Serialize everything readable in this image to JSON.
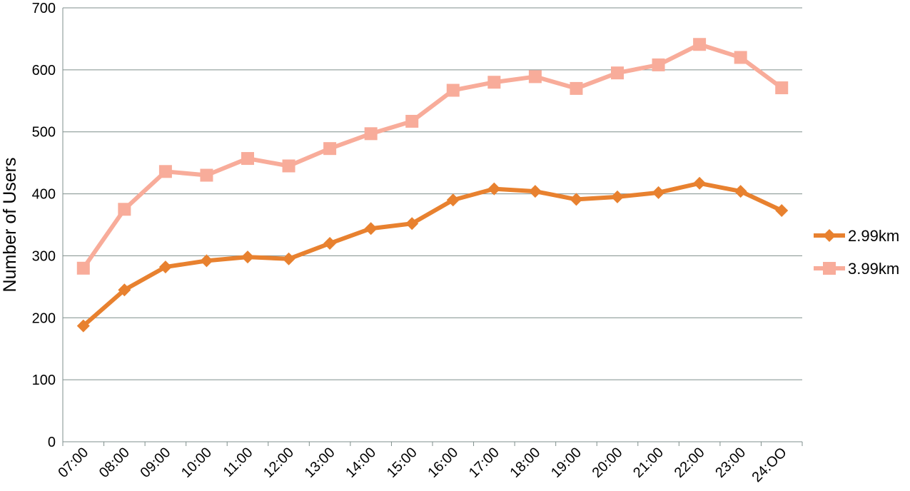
{
  "chart_data": {
    "type": "line",
    "title": "",
    "xlabel": "",
    "ylabel": "Number of Users",
    "ylim": [
      0,
      700
    ],
    "yticks": [
      0,
      100,
      200,
      300,
      400,
      500,
      600,
      700
    ],
    "grid": true,
    "legend_position": "right",
    "categories": [
      "07:00",
      "08:00",
      "09:00",
      "10:00",
      "11:00",
      "12:00",
      "13:00",
      "14:00",
      "15:00",
      "16:00",
      "17:00",
      "18:00",
      "19:00",
      "20:00",
      "21:00",
      "22:00",
      "23:00",
      "24:OO"
    ],
    "series": [
      {
        "name": "2.99km",
        "color": "#e8812f",
        "marker": "diamond",
        "values": [
          187,
          245,
          282,
          292,
          298,
          295,
          320,
          344,
          352,
          390,
          408,
          404,
          391,
          395,
          402,
          417,
          404,
          373
        ]
      },
      {
        "name": "3.99km",
        "color": "#f8ac9a",
        "marker": "square",
        "values": [
          280,
          375,
          436,
          430,
          457,
          445,
          473,
          497,
          517,
          567,
          580,
          589,
          570,
          595,
          608,
          641,
          620,
          571
        ]
      }
    ]
  }
}
